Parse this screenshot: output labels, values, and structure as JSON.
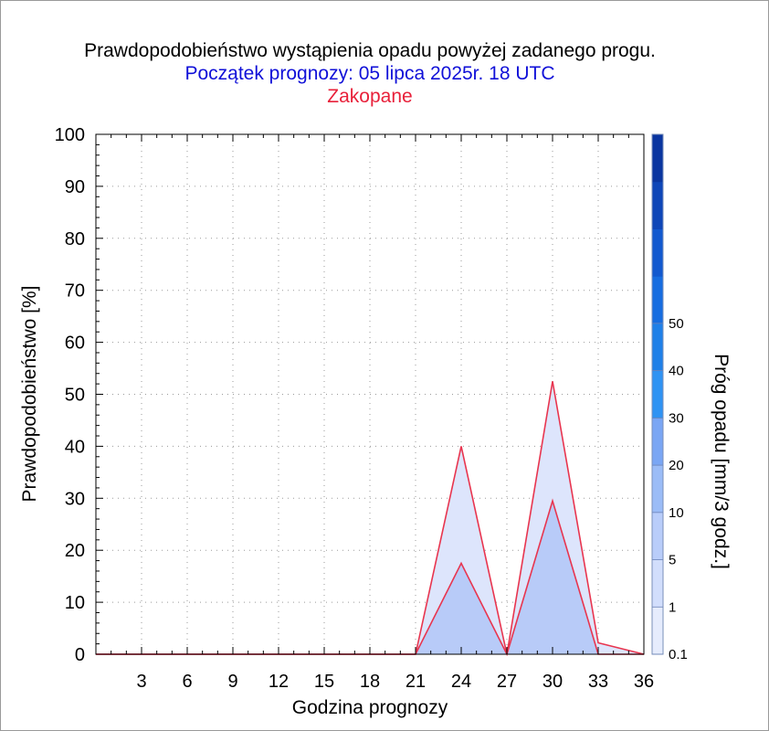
{
  "chart_data": {
    "type": "area",
    "title": "Prawdopodobieństwo wystąpienia opadu powyżej zadanego progu.",
    "subtitle": "Początek prognozy: 05 lipca 2025r. 18 UTC",
    "location": "Zakopane",
    "xlabel": "Godzina prognozy",
    "ylabel": "Prawdopodobieństwo [%]",
    "y2label": "Próg opadu [mm/3 godz.]",
    "xlim": [
      0,
      36
    ],
    "ylim": [
      0,
      100
    ],
    "xticks": [
      "3",
      "6",
      "9",
      "12",
      "15",
      "18",
      "21",
      "24",
      "27",
      "30",
      "33",
      "36"
    ],
    "xtick_values": [
      3,
      6,
      9,
      12,
      15,
      18,
      21,
      24,
      27,
      30,
      33,
      36
    ],
    "yticks": [
      "0",
      "10",
      "20",
      "30",
      "40",
      "50",
      "60",
      "70",
      "80",
      "90",
      "100"
    ],
    "ytick_values": [
      0,
      10,
      20,
      30,
      40,
      50,
      60,
      70,
      80,
      90,
      100
    ],
    "grid": true,
    "x": [
      0,
      3,
      6,
      9,
      12,
      15,
      18,
      21,
      24,
      27,
      30,
      33,
      36
    ],
    "series": [
      {
        "threshold": "0.1",
        "color": "#dde5fc",
        "values": [
          0,
          0,
          0,
          0,
          0,
          0,
          0,
          0,
          40,
          0,
          52.5,
          2.2,
          0
        ]
      },
      {
        "threshold": "1",
        "color": "#b8cbf8",
        "values": [
          0,
          0,
          0,
          0,
          0,
          0,
          0,
          0,
          17.5,
          0,
          29.5,
          0,
          0
        ]
      }
    ],
    "line_color": "#e8354f",
    "colorbar": {
      "labels": [
        "0.1",
        "1",
        "5",
        "10",
        "20",
        "30",
        "40",
        "50"
      ],
      "colors": [
        "#e6ecfd",
        "#d2defc",
        "#b9cdfa",
        "#9bbcf7",
        "#7aa6f4",
        "#2f93f3",
        "#1f80e8",
        "#176de0",
        "#1259cf",
        "#0e46b8",
        "#0a35a0"
      ]
    }
  }
}
